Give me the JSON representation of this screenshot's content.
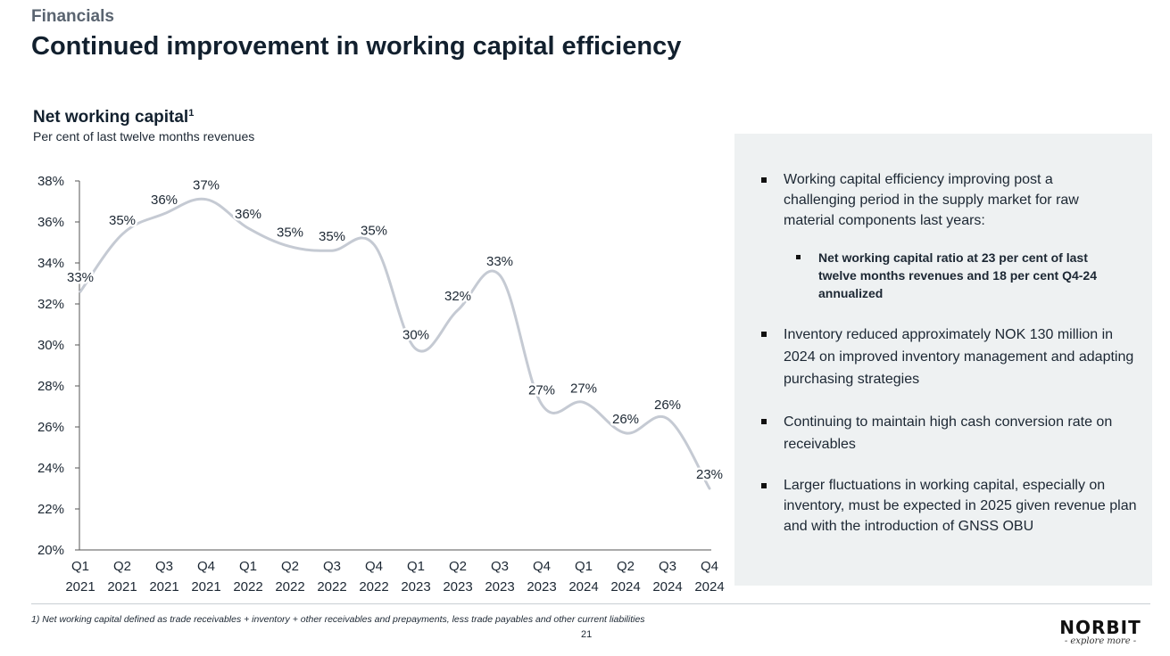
{
  "header": {
    "section": "Financials",
    "title": "Continued improvement in working capital efficiency"
  },
  "chart_data": {
    "type": "line",
    "title": "Net working capital",
    "title_superscript": "1",
    "subtitle": "Per cent of last twelve months revenues",
    "xlabel": "",
    "ylabel": "",
    "ylim": [
      20,
      38
    ],
    "yticks": [
      "20%",
      "22%",
      "24%",
      "26%",
      "28%",
      "30%",
      "32%",
      "34%",
      "36%",
      "38%"
    ],
    "categories": [
      [
        "Q1",
        "2021"
      ],
      [
        "Q2",
        "2021"
      ],
      [
        "Q3",
        "2021"
      ],
      [
        "Q4",
        "2021"
      ],
      [
        "Q1",
        "2022"
      ],
      [
        "Q2",
        "2022"
      ],
      [
        "Q3",
        "2022"
      ],
      [
        "Q4",
        "2022"
      ],
      [
        "Q1",
        "2023"
      ],
      [
        "Q2",
        "2023"
      ],
      [
        "Q3",
        "2023"
      ],
      [
        "Q4",
        "2023"
      ],
      [
        "Q1",
        "2024"
      ],
      [
        "Q2",
        "2024"
      ],
      [
        "Q3",
        "2024"
      ],
      [
        "Q4",
        "2024"
      ]
    ],
    "values": [
      32.6,
      35.4,
      36.4,
      37.1,
      35.7,
      34.8,
      34.6,
      34.9,
      29.8,
      31.7,
      33.4,
      27.1,
      27.2,
      25.7,
      26.4,
      23.0
    ],
    "data_labels": [
      "33%",
      "35%",
      "36%",
      "37%",
      "36%",
      "35%",
      "35%",
      "35%",
      "30%",
      "32%",
      "33%",
      "27%",
      "27%",
      "26%",
      "26%",
      "23%"
    ],
    "grid": false,
    "line_color": "#c5cad3"
  },
  "panel": {
    "bullets": [
      {
        "text": "Working capital efficiency improving post a challenging period in the supply market for raw material components last years:"
      },
      {
        "text": "Net working capital ratio at 23 per cent of last twelve months revenues and 18 per cent Q4-24 annualized"
      },
      {
        "text": "Inventory reduced approximately NOK 130 million in 2024 on improved inventory management and adapting purchasing strategies"
      },
      {
        "text": "Continuing to maintain high cash conversion rate on receivables"
      },
      {
        "text": "Larger fluctuations in working capital, especially on inventory, must be expected in 2025 given revenue plan and with the introduction of GNSS OBU"
      }
    ]
  },
  "footer": {
    "footnote": "1) Net working capital defined as trade receivables + inventory + other receivables and prepayments, less trade payables and other current liabilities",
    "page_number": "21",
    "logo_text": "NORBIT",
    "logo_tagline": "- explore more -"
  }
}
